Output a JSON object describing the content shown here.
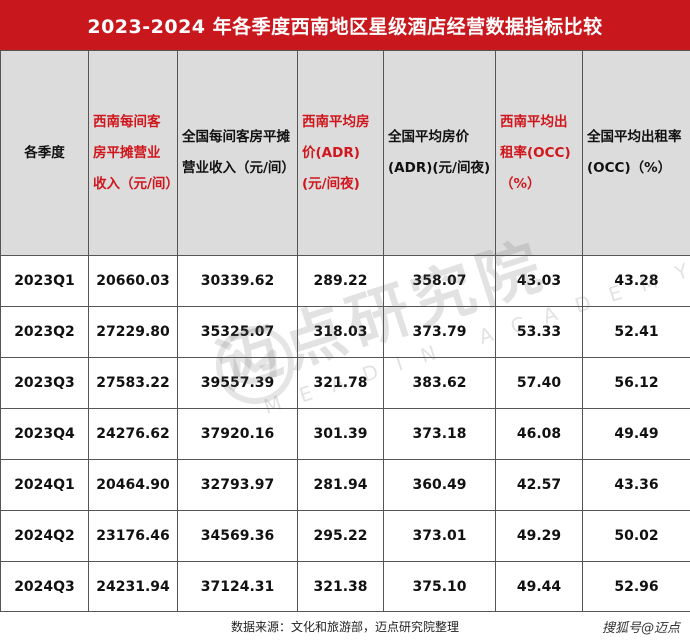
{
  "title": "2023-2024 年各季度西南地区星级酒店经营数据指标比较",
  "columns": [
    {
      "label": "各季度",
      "highlight": false
    },
    {
      "label": "西南每间客房平摊营业收入（元/间）",
      "highlight": true
    },
    {
      "label": "全国每间客房平摊营业收入（元/间）",
      "highlight": false
    },
    {
      "label": "西南平均房价(ADR)(元/间夜)",
      "highlight": true
    },
    {
      "label": "全国平均房价(ADR)(元/间夜)",
      "highlight": false
    },
    {
      "label": "西南平均出租率(OCC)（%）",
      "highlight": true
    },
    {
      "label": "全国平均出租率(OCC)（%）",
      "highlight": false
    }
  ],
  "rows": [
    [
      "2023Q1",
      "20660.03",
      "30339.62",
      "289.22",
      "358.07",
      "43.03",
      "43.28"
    ],
    [
      "2023Q2",
      "27229.80",
      "35325.07",
      "318.03",
      "373.79",
      "53.33",
      "52.41"
    ],
    [
      "2023Q3",
      "27583.22",
      "39557.39",
      "321.78",
      "383.62",
      "57.40",
      "56.12"
    ],
    [
      "2023Q4",
      "24276.62",
      "37920.16",
      "301.39",
      "373.18",
      "46.08",
      "49.49"
    ],
    [
      "2024Q1",
      "20464.90",
      "32793.97",
      "281.94",
      "360.49",
      "42.57",
      "43.36"
    ],
    [
      "2024Q2",
      "23176.46",
      "34569.36",
      "295.22",
      "373.01",
      "49.29",
      "50.02"
    ],
    [
      "2024Q3",
      "24231.94",
      "37124.31",
      "321.38",
      "375.10",
      "49.44",
      "52.96"
    ]
  ],
  "footer": "数据来源：文化和旅游部，迈点研究院整理",
  "credit": "搜狐号@迈点",
  "watermark": {
    "text": "迈点研究院",
    "sub": "MEADIN ACADEMY",
    "logo_icon": "meadin-logo-icon"
  }
}
